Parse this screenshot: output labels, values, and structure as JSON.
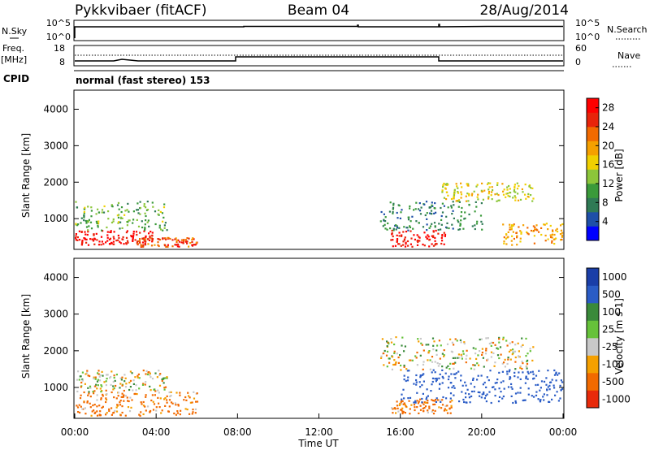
{
  "header": {
    "station": "Pykkvibaer (fitACF)",
    "beam": "Beam 04",
    "date": "28/Aug/2014"
  },
  "status_panels": {
    "nsky_label": "N.Sky",
    "nsky_ticks": [
      "10^5",
      "10^0"
    ],
    "nsearch_label": "N.Search",
    "nsearch_ticks": [
      "10^5",
      "10^0"
    ],
    "freq_label": "Freq.",
    "freq_unit": "[MHz]",
    "freq_ticks": [
      "18",
      "8"
    ],
    "nave_label": "Nave",
    "nave_ticks": [
      "60",
      "0"
    ],
    "cpid_label": "CPID",
    "cpid_text": "normal (fast stereo) 153"
  },
  "chart_data": [
    {
      "type": "heatmap",
      "ylabel": "Slant Range [km]",
      "ytick_labels": [
        "4000",
        "3000",
        "2000",
        "1000"
      ],
      "yticks": [
        4000,
        3000,
        2000,
        1000
      ],
      "ylim": [
        180,
        4500
      ],
      "xlim": [
        0,
        24
      ],
      "colorbar": {
        "label": "Power [dB]",
        "tick_labels": [
          "28",
          "24",
          "20",
          "16",
          "12",
          "8",
          "4"
        ],
        "ticks": [
          28,
          24,
          20,
          16,
          12,
          8,
          4
        ],
        "range": [
          0,
          30
        ],
        "colors": [
          "#0000ff",
          "#1e4fa8",
          "#2f7a55",
          "#3a9a3a",
          "#8cc63a",
          "#f0d000",
          "#f5a000",
          "#f26a00",
          "#e8240a",
          "#ff0000"
        ]
      },
      "regions": [
        {
          "t": [
            0.0,
            3.8
          ],
          "r": [
            300,
            700
          ],
          "v": 28
        },
        {
          "t": [
            0.0,
            4.5
          ],
          "r": [
            700,
            1500
          ],
          "v": 12
        },
        {
          "t": [
            3.0,
            6.0
          ],
          "r": [
            250,
            500
          ],
          "v": 24
        },
        {
          "t": [
            15.5,
            18.2
          ],
          "r": [
            250,
            700
          ],
          "v": 28
        },
        {
          "t": [
            15.0,
            20.0
          ],
          "r": [
            700,
            1500
          ],
          "v": 8
        },
        {
          "t": [
            18.0,
            22.5
          ],
          "r": [
            1500,
            2000
          ],
          "v": 16
        },
        {
          "t": [
            21.0,
            24.0
          ],
          "r": [
            300,
            900
          ],
          "v": 20
        }
      ]
    },
    {
      "type": "heatmap",
      "ylabel": "Slant Range [km]",
      "ytick_labels": [
        "4000",
        "3000",
        "2000",
        "1000"
      ],
      "yticks": [
        4000,
        3000,
        2000,
        1000
      ],
      "ylim": [
        180,
        4500
      ],
      "xlim": [
        0,
        24
      ],
      "xlabel": "Time UT",
      "xtick_labels": [
        "00:00",
        "04:00",
        "08:00",
        "12:00",
        "16:00",
        "20:00",
        "00:00"
      ],
      "xticks": [
        0,
        4,
        8,
        12,
        16,
        20,
        24
      ],
      "colorbar": {
        "label": "Velocity [m s-1]",
        "tick_labels": [
          "1000",
          "500",
          "100",
          "25",
          "-25",
          "-100",
          "-500",
          "-1000"
        ],
        "colors": [
          "#1a3ea8",
          "#2a5cc6",
          "#3a8a3a",
          "#66c23a",
          "#c8c8c8",
          "#f5a000",
          "#f26a00",
          "#e82a0a"
        ]
      },
      "regions": [
        {
          "t": [
            0.0,
            6.0
          ],
          "r": [
            250,
            900
          ],
          "v": -100
        },
        {
          "t": [
            0.0,
            4.5
          ],
          "r": [
            900,
            1500
          ],
          "v": 0
        },
        {
          "t": [
            15.5,
            18.5
          ],
          "r": [
            300,
            700
          ],
          "v": -100
        },
        {
          "t": [
            15.0,
            22.5
          ],
          "r": [
            1500,
            2400
          ],
          "v": 0
        },
        {
          "t": [
            16.0,
            24.0
          ],
          "r": [
            600,
            1500
          ],
          "v": 500
        }
      ]
    }
  ]
}
